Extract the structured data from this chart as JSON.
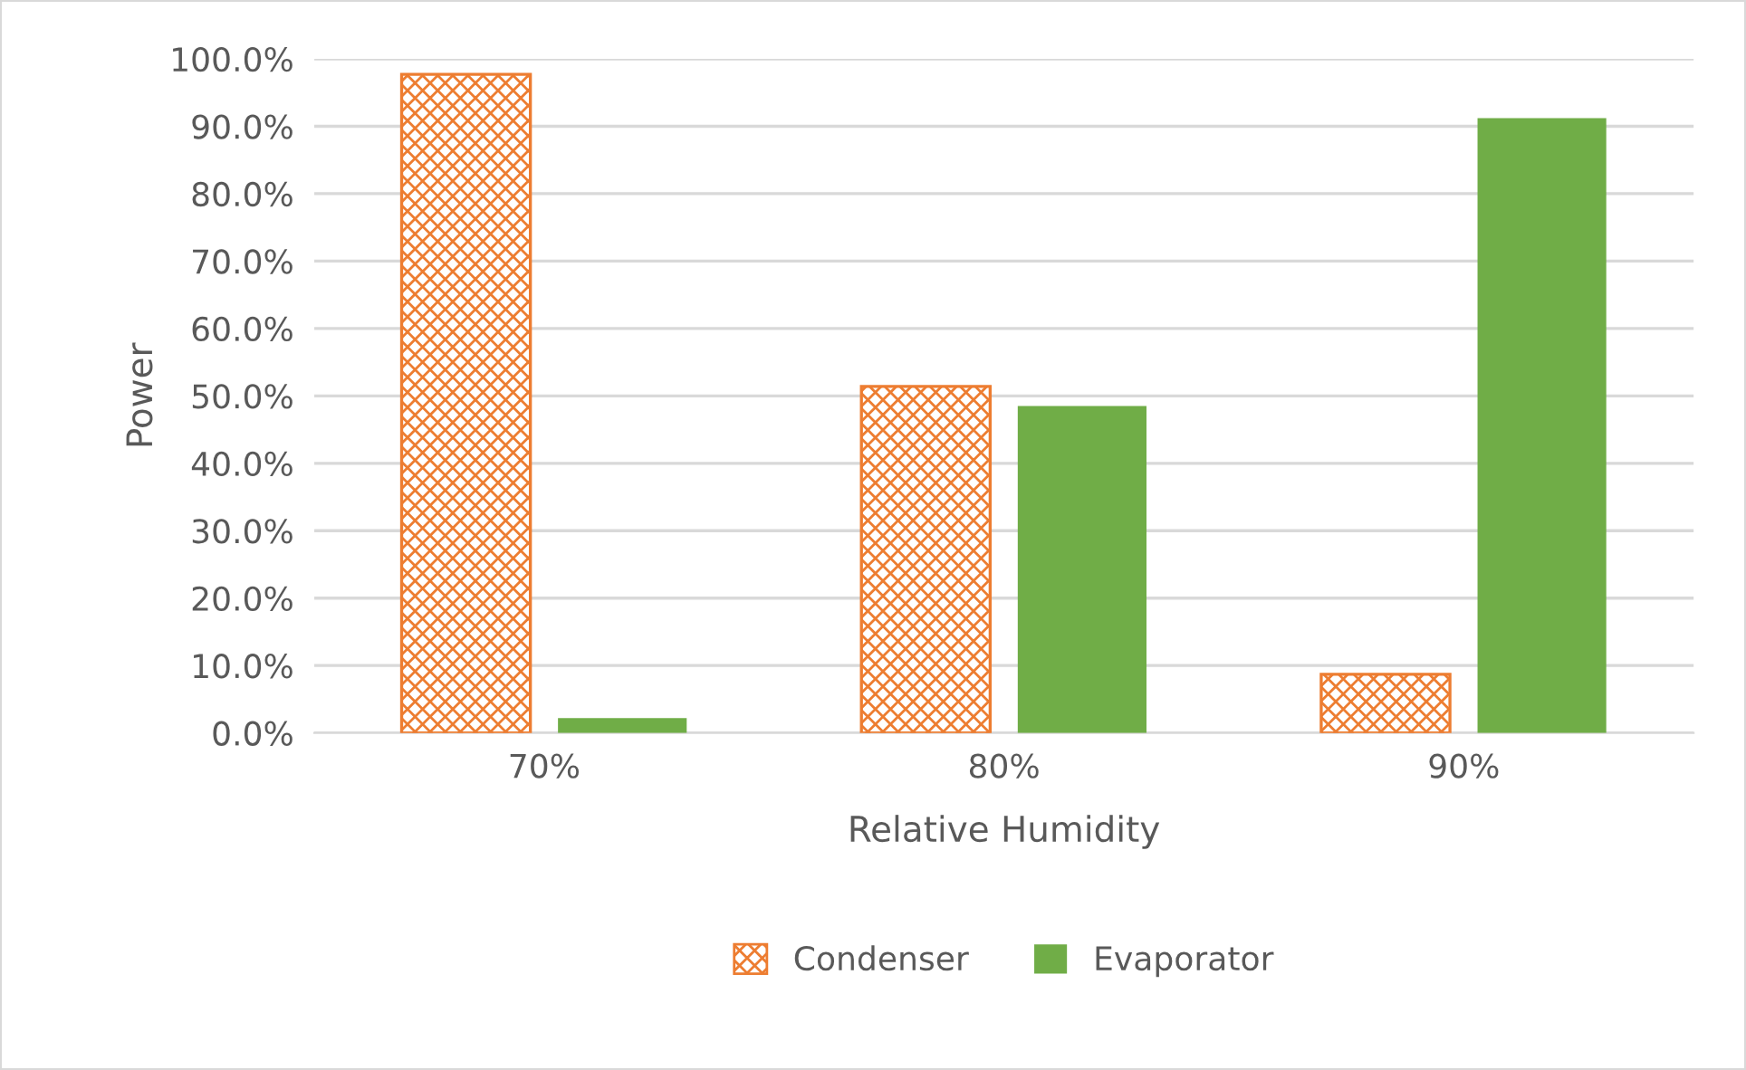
{
  "chart_data": {
    "type": "bar",
    "xlabel": "Relative Humidity",
    "ylabel": "Power",
    "categories": [
      "70%",
      "80%",
      "90%"
    ],
    "series": [
      {
        "name": "Condenser",
        "color": "#ed7d31",
        "values": [
          97.7,
          51.4,
          8.7
        ]
      },
      {
        "name": "Evaporator",
        "color": "#70ad47",
        "values": [
          2.2,
          48.5,
          91.2
        ]
      }
    ],
    "ylim": [
      0,
      100
    ],
    "yticks": [
      {
        "value": 0,
        "label": "0.0%"
      },
      {
        "value": 10,
        "label": "10.0%"
      },
      {
        "value": 20,
        "label": "20.0%"
      },
      {
        "value": 30,
        "label": "30.0%"
      },
      {
        "value": 40,
        "label": "40.0%"
      },
      {
        "value": 50,
        "label": "50.0%"
      },
      {
        "value": 60,
        "label": "60.0%"
      },
      {
        "value": 70,
        "label": "70.0%"
      },
      {
        "value": 80,
        "label": "80.0%"
      },
      {
        "value": 90,
        "label": "90.0%"
      },
      {
        "value": 100,
        "label": "100.0%"
      }
    ],
    "grid": "y",
    "legend": "bottom"
  }
}
